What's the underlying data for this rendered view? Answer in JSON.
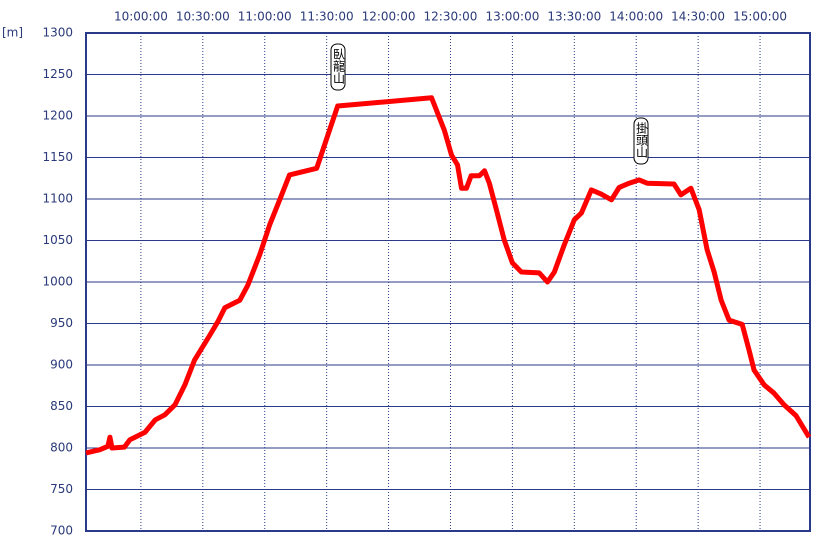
{
  "chart_data": {
    "type": "line",
    "y_unit": "[m]",
    "x": [
      "09:33:24",
      "09:40:10",
      "09:44:00",
      "09:45:00",
      "09:46:00",
      "09:52:00",
      "09:54:40",
      "10:02:00",
      "10:07:00",
      "10:11:36",
      "10:16:30",
      "10:21:18",
      "10:26:00",
      "10:33:24",
      "10:37:15",
      "10:40:40",
      "10:47:54",
      "10:51:47",
      "10:57:35",
      "11:02:25",
      "11:07:15",
      "11:12:00",
      "11:25:10",
      "11:35:20",
      "12:20:50",
      "12:27:00",
      "12:30:30",
      "12:33:25",
      "12:35:20",
      "12:37:45",
      "12:40:00",
      "12:44:00",
      "12:46:30",
      "12:48:50",
      "12:52:15",
      "12:56:00",
      "13:00:00",
      "13:04:20",
      "13:13:00",
      "13:17:00",
      "13:20:20",
      "13:25:10",
      "13:30:00",
      "13:33:25",
      "13:38:15",
      "13:43:00",
      "13:48:00",
      "13:51:45",
      "13:56:35",
      "14:01:25",
      "14:05:15",
      "14:18:20",
      "14:21:40",
      "14:26:30",
      "14:30:30",
      "14:34:20",
      "14:37:45",
      "14:41:10",
      "14:45:00",
      "14:51:20",
      "14:54:40",
      "14:57:05",
      "15:02:00",
      "15:06:47",
      "15:11:40",
      "15:17:25",
      "15:23:45"
    ],
    "series": [
      {
        "color": "#ff0000",
        "values": [
          794,
          798,
          802,
          813,
          800,
          801,
          810,
          819,
          834,
          840,
          852,
          876,
          906,
          936,
          952,
          969,
          978,
          996,
          1033,
          1069,
          1099,
          1129,
          1137,
          1212,
          1222,
          1183,
          1153,
          1141,
          1113,
          1113,
          1128,
          1128,
          1134,
          1119,
          1087,
          1051,
          1023,
          1012,
          1011,
          1000,
          1012,
          1045,
          1075,
          1083,
          1111,
          1106,
          1099,
          1114,
          1119,
          1123,
          1119,
          1118,
          1105,
          1113,
          1087,
          1039,
          1012,
          978,
          954,
          949,
          918,
          894,
          876,
          866,
          852,
          839,
          813
        ]
      }
    ],
    "xlim": [
      "09:33:24",
      "15:24:12"
    ],
    "xticks": [
      "10:00:00",
      "10:30:00",
      "11:00:00",
      "11:30:00",
      "12:00:00",
      "12:30:00",
      "13:00:00",
      "13:30:00",
      "14:00:00",
      "14:30:00",
      "15:00:00"
    ],
    "ylim": [
      700,
      1300
    ],
    "yticks": [
      700,
      750,
      800,
      850,
      900,
      950,
      1000,
      1050,
      1100,
      1150,
      1200,
      1250,
      1300
    ],
    "grid": true,
    "annotations": [
      "臥龍山",
      "掛頭山"
    ]
  }
}
